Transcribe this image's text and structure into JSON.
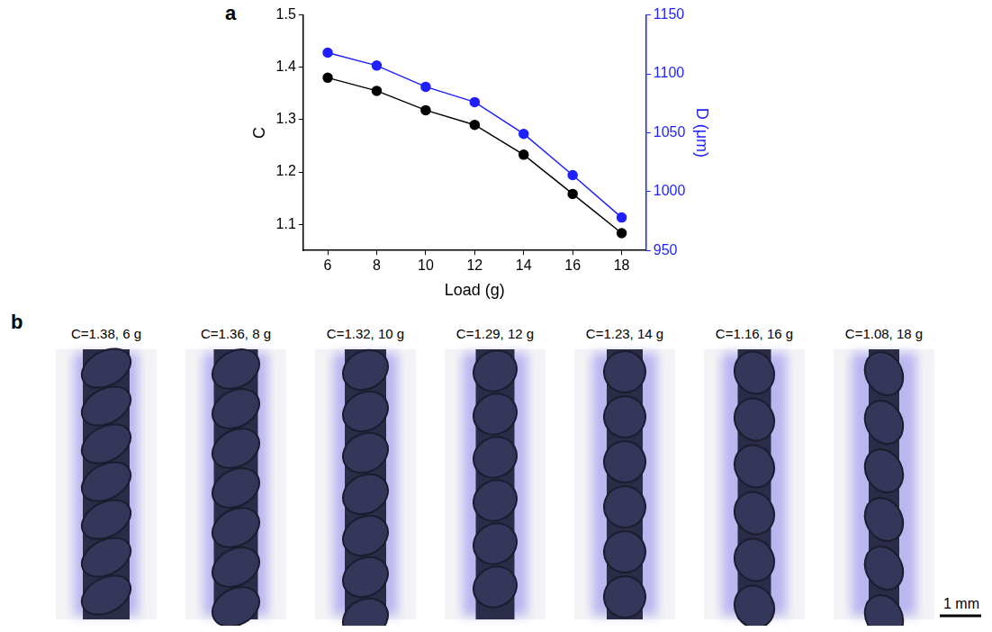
{
  "chart_data": {
    "type": "line",
    "panel_label": "a",
    "x": [
      6,
      8,
      10,
      12,
      14,
      16,
      18
    ],
    "series": [
      {
        "name": "C",
        "color": "#000000",
        "marker": "circle",
        "values": [
          1.38,
          1.355,
          1.318,
          1.29,
          1.233,
          1.158,
          1.083
        ]
      },
      {
        "name": "D",
        "color": "#1f1fff",
        "marker": "circle",
        "axis": "y2",
        "values": [
          1118,
          1107,
          1089,
          1076,
          1049,
          1014,
          978
        ]
      }
    ],
    "x_label": "Load (g)",
    "y_label": "C",
    "y2_label": "D (μm)",
    "xlim": [
      5,
      19
    ],
    "xticks": [
      6,
      8,
      10,
      12,
      14,
      16,
      18
    ],
    "ylim": [
      1.05,
      1.5
    ],
    "yticks": [
      1.1,
      1.2,
      1.3,
      1.4,
      1.5
    ],
    "y2lim": [
      950,
      1150
    ],
    "y2ticks": [
      950,
      1000,
      1050,
      1100,
      1150
    ],
    "grid": false
  },
  "photos": {
    "panel_label": "b",
    "captions": [
      "C=1.38, 6 g",
      "C=1.36, 8 g",
      "C=1.32, 10 g",
      "C=1.29, 12 g",
      "C=1.23, 14 g",
      "C=1.16, 16 g",
      "C=1.08, 18 g"
    ],
    "scale_bar": "1 mm"
  }
}
